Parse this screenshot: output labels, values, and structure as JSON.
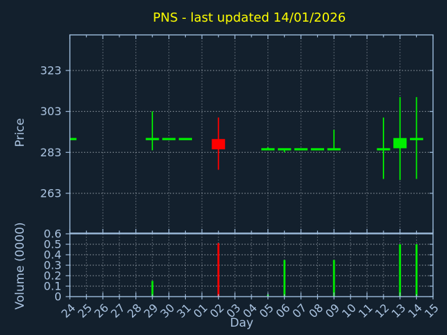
{
  "colors": {
    "background": "#13202d",
    "spine": "#9fbddd",
    "tick_label": "#aac3e0",
    "grid": "#c3cad3",
    "title": "#ffff00",
    "up": "#00ee00",
    "down": "#ff0000"
  },
  "chart_data": {
    "type": "candlestick+volume",
    "title": "PNS - last updated 14/01/2026",
    "x_axis": {
      "label": "Day",
      "tick_labels": [
        "24",
        "25",
        "26",
        "27",
        "28",
        "29",
        "30",
        "31",
        "01",
        "02",
        "03",
        "04",
        "05",
        "06",
        "07",
        "08",
        "09",
        "10",
        "11",
        "12",
        "13",
        "14",
        "15"
      ],
      "price_grid_every": 2,
      "volume_grid_every": 1
    },
    "price_panel": {
      "ylabel": "Price",
      "yticks": [
        323,
        303,
        283,
        263
      ],
      "ylim": [
        243.5,
        340.3
      ],
      "grid": true,
      "candles": [
        {
          "day": "24",
          "open": 289.5,
          "high": 289.5,
          "low": 289.5,
          "close": 289.5,
          "direction": "up"
        },
        {
          "day": "29",
          "open": 289.5,
          "high": 303,
          "low": 284,
          "close": 289.5,
          "direction": "up"
        },
        {
          "day": "30",
          "open": 289.5,
          "high": 289.5,
          "low": 289.5,
          "close": 289.5,
          "direction": "up"
        },
        {
          "day": "31",
          "open": 289.5,
          "high": 289.5,
          "low": 289.5,
          "close": 289.5,
          "direction": "up"
        },
        {
          "day": "02",
          "open": 289.5,
          "high": 300,
          "low": 274.5,
          "close": 284.5,
          "direction": "down"
        },
        {
          "day": "05",
          "open": 284.5,
          "high": 285.5,
          "low": 284.5,
          "close": 284.5,
          "direction": "up"
        },
        {
          "day": "06",
          "open": 284.5,
          "high": 284.5,
          "low": 283,
          "close": 284.5,
          "direction": "up"
        },
        {
          "day": "07",
          "open": 284.5,
          "high": 284.5,
          "low": 284.5,
          "close": 284.5,
          "direction": "up"
        },
        {
          "day": "08",
          "open": 284.5,
          "high": 284.5,
          "low": 284.5,
          "close": 284.5,
          "direction": "up"
        },
        {
          "day": "09",
          "open": 284.5,
          "high": 294,
          "low": 284.5,
          "close": 284.5,
          "direction": "up"
        },
        {
          "day": "12",
          "open": 284.5,
          "high": 300,
          "low": 270,
          "close": 284.5,
          "direction": "up"
        },
        {
          "day": "13",
          "open": 285,
          "high": 310,
          "low": 269.5,
          "close": 290,
          "direction": "up"
        },
        {
          "day": "14",
          "open": 289.5,
          "high": 310,
          "low": 270,
          "close": 289.5,
          "direction": "up"
        }
      ]
    },
    "volume_panel": {
      "ylabel": "Volume (0000)",
      "yticks": [
        0,
        0.1,
        0.2,
        0.3,
        0.4,
        0.5,
        0.6
      ],
      "ylim": [
        0,
        0.6
      ],
      "grid": true,
      "bars": [
        {
          "day": "29",
          "value": 0.15,
          "direction": "up"
        },
        {
          "day": "02",
          "value": 0.51,
          "direction": "down"
        },
        {
          "day": "05",
          "value": 0.02,
          "direction": "up"
        },
        {
          "day": "06",
          "value": 0.35,
          "direction": "up"
        },
        {
          "day": "09",
          "value": 0.35,
          "direction": "up"
        },
        {
          "day": "13",
          "value": 0.5,
          "direction": "up"
        },
        {
          "day": "14",
          "value": 0.5,
          "direction": "up"
        }
      ]
    }
  }
}
